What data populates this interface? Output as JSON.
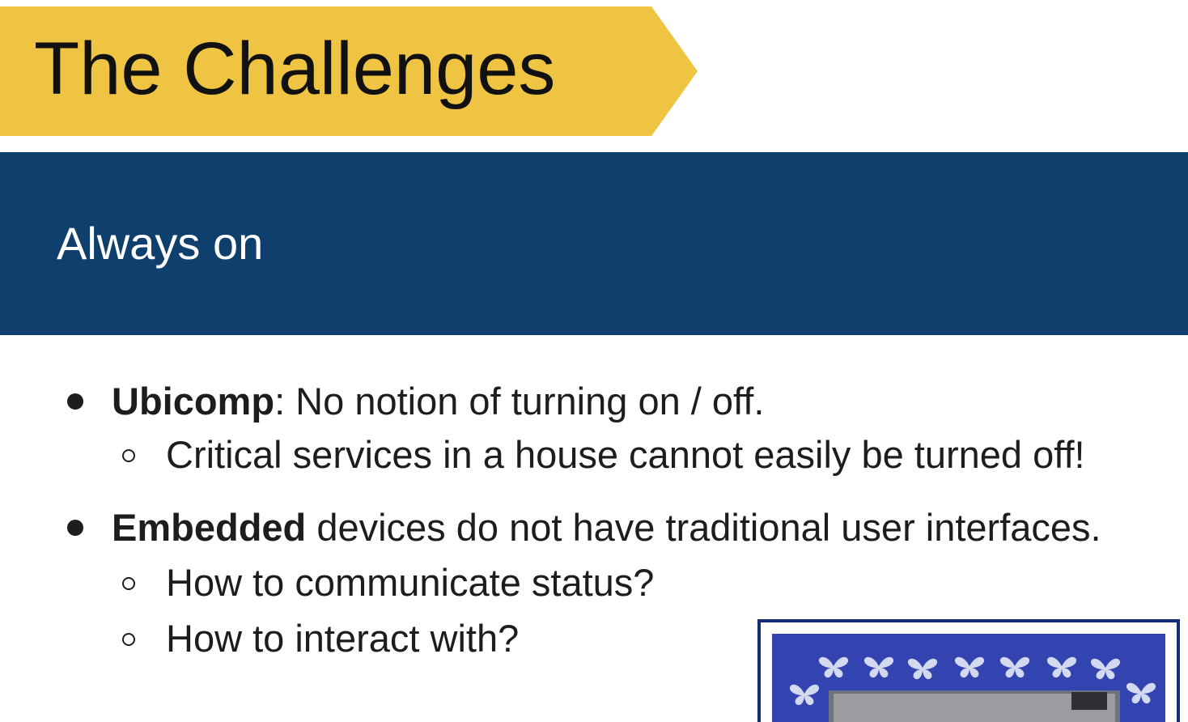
{
  "slide": {
    "title": "The Challenges",
    "subtitle": "Always on",
    "colors": {
      "title_banner": "#efc443",
      "subtitle_band": "#0e3f6d",
      "text": "#1d1d1d",
      "picture_frame": "#142c78",
      "picture_background": "#3344b0"
    }
  },
  "bullets": [
    {
      "bold": "Ubicomp",
      "text": ": No notion of turning on / off.",
      "sub": [
        "Critical services in a house cannot easily be turned off!"
      ]
    },
    {
      "bold": "Embedded",
      "text": " devices do not have traditional user interfaces.",
      "sub": [
        "How to communicate status?",
        "How to interact with?"
      ]
    }
  ],
  "picture": {
    "icon": "butterfly-border-photo"
  }
}
